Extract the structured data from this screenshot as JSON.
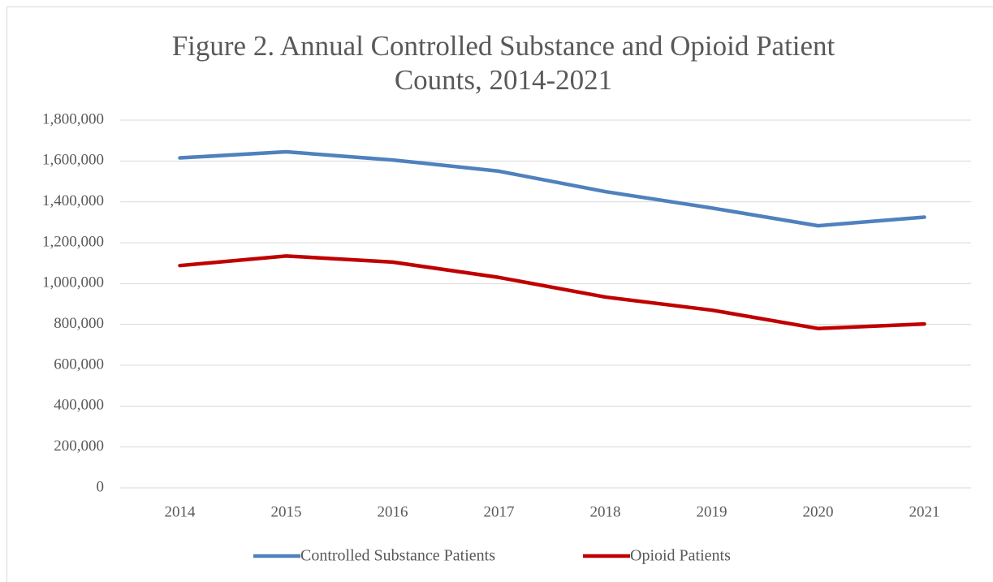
{
  "chart_data": {
    "type": "line",
    "title": "Figure 2. Annual Controlled Substance and Opioid Patient\nCounts, 2014-2021",
    "categories": [
      "2014",
      "2015",
      "2016",
      "2017",
      "2018",
      "2019",
      "2020",
      "2021"
    ],
    "series": [
      {
        "name": "Controlled Substance Patients",
        "color": "#4f81bd",
        "values": [
          1615000,
          1645000,
          1605000,
          1550000,
          1450000,
          1370000,
          1283000,
          1325000
        ]
      },
      {
        "name": "Opioid Patients",
        "color": "#c00000",
        "values": [
          1088000,
          1135000,
          1105000,
          1030000,
          934000,
          870000,
          780000,
          802000
        ]
      }
    ],
    "ylim": [
      0,
      1800000
    ],
    "yticks": [
      0,
      {
        "value": 200000,
        "label": "200,000"
      },
      {
        "value": 400000,
        "label": "400,000"
      },
      {
        "value": 600000,
        "label": "600,000"
      },
      {
        "value": 800000,
        "label": "800,000"
      },
      {
        "value": 1000000,
        "label": "1,000,000"
      },
      {
        "value": 1200000,
        "label": "1,200,000"
      },
      {
        "value": 1400000,
        "label": "1,400,000"
      },
      {
        "value": 1600000,
        "label": "1,600,000"
      },
      {
        "value": 1800000,
        "label": "1,800,000"
      }
    ],
    "grid": true,
    "legend": "bottom"
  }
}
